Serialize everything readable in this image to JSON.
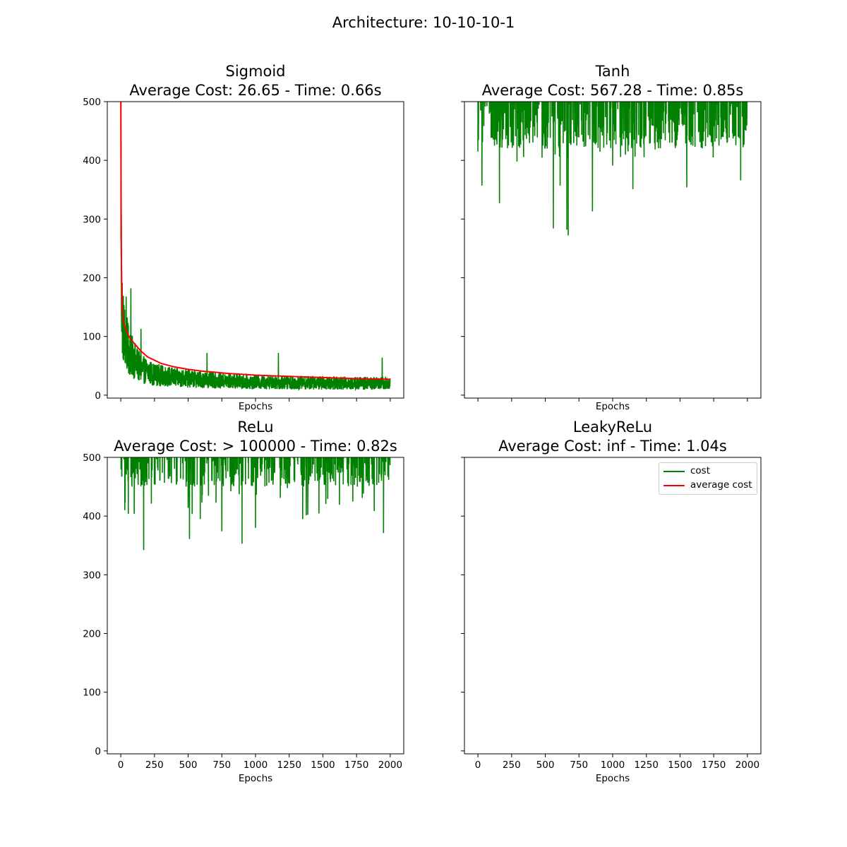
{
  "figure": {
    "suptitle": "Architecture: 10-10-10-1"
  },
  "colors": {
    "cost": "#008000",
    "average_cost": "#ff0000",
    "axes": "#000000"
  },
  "legend": {
    "items": [
      {
        "label": "cost",
        "color": "#008000"
      },
      {
        "label": "average cost",
        "color": "#ff0000"
      }
    ],
    "placement": "upper right",
    "panel": 3
  },
  "chart_data": [
    {
      "type": "line",
      "title": "Sigmoid",
      "subtitle": "Average Cost: 26.65 - Time: 0.66s",
      "xlabel": "Epochs",
      "ylabel": "",
      "xlim": [
        -100,
        2100
      ],
      "ylim": [
        -5,
        500
      ],
      "xticks": [
        0,
        250,
        500,
        750,
        1000,
        1250,
        1500,
        1750,
        2000
      ],
      "yticks": [
        0,
        100,
        200,
        300,
        400,
        500
      ],
      "show_xticklabels": false,
      "show_yticklabels": true,
      "cost_profile": {
        "epochs": 2000,
        "points": [
          [
            0,
            440
          ],
          [
            5,
            180
          ],
          [
            15,
            120
          ],
          [
            30,
            100
          ],
          [
            60,
            75
          ],
          [
            100,
            60
          ],
          [
            150,
            45
          ],
          [
            250,
            35
          ],
          [
            400,
            30
          ],
          [
            700,
            25
          ],
          [
            1000,
            22
          ],
          [
            2000,
            20
          ]
        ],
        "noise": 0.55,
        "spikes": [
          [
            40,
            168
          ],
          [
            75,
            182
          ],
          [
            150,
            113
          ],
          [
            640,
            72
          ],
          [
            1170,
            72
          ],
          [
            1940,
            64
          ]
        ]
      },
      "average_cost": {
        "x": [
          1,
          3,
          5,
          10,
          20,
          40,
          60,
          100,
          150,
          200,
          300,
          400,
          500,
          600,
          700,
          800,
          1000,
          1250,
          1500,
          1750,
          2000
        ],
        "y": [
          500,
          300,
          220,
          150,
          125,
          110,
          100,
          88,
          75,
          65,
          54,
          48,
          44,
          41,
          39,
          37,
          34,
          32,
          30,
          28,
          27
        ]
      },
      "legend": false
    },
    {
      "type": "line",
      "title": "Tanh",
      "subtitle": "Average Cost: 567.28 - Time: 0.85s",
      "xlabel": "Epochs",
      "ylabel": "",
      "xlim": [
        -100,
        2100
      ],
      "ylim": [
        -5,
        500
      ],
      "xticks": [
        0,
        250,
        500,
        750,
        1000,
        1250,
        1500,
        1750,
        2000
      ],
      "yticks": [
        0,
        100,
        200,
        300,
        400,
        500
      ],
      "show_xticklabels": false,
      "show_yticklabels": false,
      "cost_profile": {
        "epochs": 2000,
        "points": [
          [
            0,
            600
          ],
          [
            2000,
            600
          ]
        ],
        "noise": 0.3,
        "dips": [
          [
            30,
            357
          ],
          [
            160,
            327
          ],
          [
            290,
            398
          ],
          [
            560,
            284
          ],
          [
            610,
            357
          ],
          [
            660,
            282
          ],
          [
            670,
            272
          ],
          [
            850,
            313
          ],
          [
            1000,
            391
          ],
          [
            1150,
            351
          ],
          [
            1550,
            354
          ],
          [
            1950,
            366
          ]
        ]
      },
      "average_cost": null,
      "legend": false
    },
    {
      "type": "line",
      "title": "ReLu",
      "subtitle": "Average Cost: > 100000 - Time: 0.82s",
      "xlabel": "Epochs",
      "ylabel": "",
      "xlim": [
        -100,
        2100
      ],
      "ylim": [
        -5,
        500
      ],
      "xticks": [
        0,
        250,
        500,
        750,
        1000,
        1250,
        1500,
        1750,
        2000
      ],
      "yticks": [
        0,
        100,
        200,
        300,
        400,
        500
      ],
      "show_xticklabels": true,
      "show_yticklabels": true,
      "cost_profile": {
        "epochs": 2000,
        "points": [
          [
            0,
            600
          ],
          [
            2000,
            600
          ]
        ],
        "noise": 0.25,
        "dips": [
          [
            30,
            410
          ],
          [
            100,
            404
          ],
          [
            170,
            342
          ],
          [
            510,
            361
          ],
          [
            590,
            395
          ],
          [
            750,
            374
          ],
          [
            900,
            353
          ],
          [
            1000,
            380
          ],
          [
            1350,
            395
          ],
          [
            1950,
            371
          ]
        ]
      },
      "average_cost": null,
      "legend": false
    },
    {
      "type": "line",
      "title": "LeakyReLu",
      "subtitle": "Average Cost: inf - Time: 1.04s",
      "xlabel": "Epochs",
      "ylabel": "",
      "xlim": [
        -100,
        2100
      ],
      "ylim": [
        -5,
        500
      ],
      "xticks": [
        0,
        250,
        500,
        750,
        1000,
        1250,
        1500,
        1750,
        2000
      ],
      "yticks": [
        0,
        100,
        200,
        300,
        400,
        500
      ],
      "show_xticklabels": true,
      "show_yticklabels": false,
      "cost_profile": null,
      "average_cost": null,
      "legend": true
    }
  ]
}
